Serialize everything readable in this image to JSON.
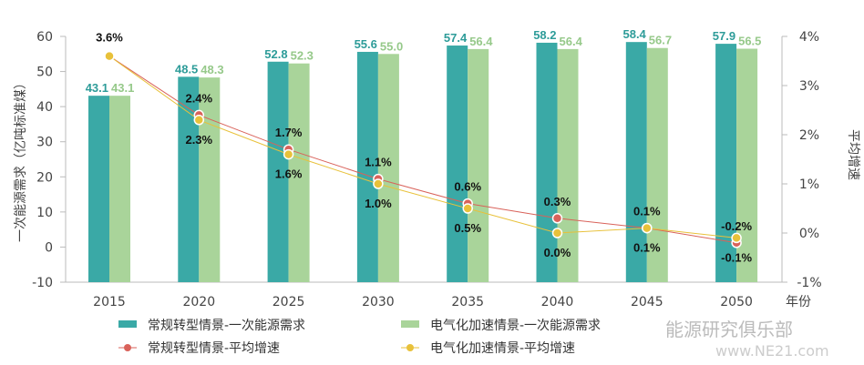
{
  "chart_data": {
    "type": "bar",
    "categories": [
      "2015",
      "2020",
      "2025",
      "2030",
      "2035",
      "2040",
      "2045",
      "2050"
    ],
    "xlabel": "年份",
    "ylabel": "一次能源需求（亿吨标准煤）",
    "y2label": "平均增速",
    "ylim": [
      -10,
      60
    ],
    "yticks": [
      -10,
      0,
      10,
      20,
      30,
      40,
      50,
      60
    ],
    "y2lim": [
      -1,
      4
    ],
    "y2ticks": [
      "-1%",
      "0%",
      "1%",
      "2%",
      "3%",
      "4%"
    ],
    "grid": false,
    "legend_position": "bottom",
    "series": [
      {
        "name": "常规转型情景-一次能源需求",
        "type": "bar",
        "axis": "left",
        "color": "#3aa9a6",
        "values": [
          43.1,
          48.5,
          52.8,
          55.6,
          57.4,
          58.2,
          58.4,
          57.9
        ],
        "labels": [
          "43.1",
          "48.5",
          "52.8",
          "55.6",
          "57.4",
          "58.2",
          "58.4",
          "57.9"
        ]
      },
      {
        "name": "电气化加速情景-一次能源需求",
        "type": "bar",
        "axis": "left",
        "color": "#a9d49a",
        "values": [
          43.1,
          48.3,
          52.3,
          55.0,
          56.4,
          56.4,
          56.7,
          56.5
        ],
        "labels": [
          "43.1",
          "48.3",
          "52.3",
          "55.0",
          "56.4",
          "56.4",
          "56.7",
          "56.5"
        ]
      },
      {
        "name": "常规转型情景-平均增速",
        "type": "line",
        "axis": "right",
        "color": "#d9625a",
        "values": [
          3.6,
          2.4,
          1.7,
          1.1,
          0.6,
          0.3,
          0.1,
          -0.2
        ],
        "labels": [
          "3.6%",
          "2.4%",
          "1.7%",
          "1.1%",
          "0.6%",
          "0.3%",
          "0.1%",
          "-0.2%"
        ]
      },
      {
        "name": "电气化加速情景-平均增速",
        "type": "line",
        "axis": "right",
        "color": "#e8c13a",
        "values": [
          3.6,
          2.3,
          1.6,
          1.0,
          0.5,
          0.0,
          0.1,
          -0.1
        ],
        "labels": [
          "",
          "2.3%",
          "1.6%",
          "1.0%",
          "0.5%",
          "0.0%",
          "0.1%",
          "-0.1%"
        ]
      }
    ]
  },
  "watermark": {
    "text": "能源研究俱乐部",
    "url": "www.NE21.com"
  }
}
